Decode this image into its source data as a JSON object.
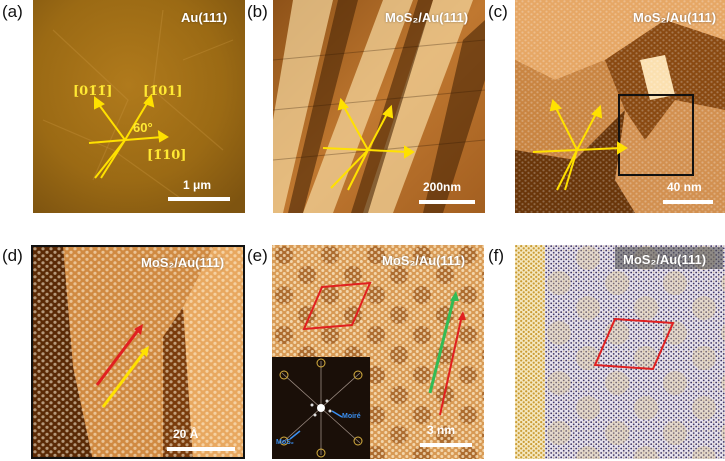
{
  "labels": {
    "a": "(a)",
    "b": "(b)",
    "c": "(c)",
    "d": "(d)",
    "e": "(e)",
    "f": "(f)"
  },
  "panels": {
    "a": {
      "title": "Au(111)",
      "scale": "1 μm",
      "angle": "60°",
      "dirs": {
        "d1": "[01̄1̄]",
        "d2": "[1̄01]",
        "d3": "[1̄10]"
      }
    },
    "b": {
      "title": "MoS₂/Au(111)",
      "scale": "200nm"
    },
    "c": {
      "title": "MoS₂/Au(111)",
      "scale": "40 nm"
    },
    "d": {
      "title": "MoS₂/Au(111)",
      "scale": "20 Å"
    },
    "e": {
      "title": "MoS₂/Au(111)",
      "scale": "3 nm",
      "inset": {
        "moire": "Moiré",
        "mos2": "MoS₂"
      }
    },
    "f": {
      "title": "MoS₂/Au(111)"
    }
  },
  "colors": {
    "arrow": "#ffe100",
    "red": "#e02020",
    "green": "#33bb55",
    "brown": "#b06a20",
    "frame": "#111111"
  }
}
